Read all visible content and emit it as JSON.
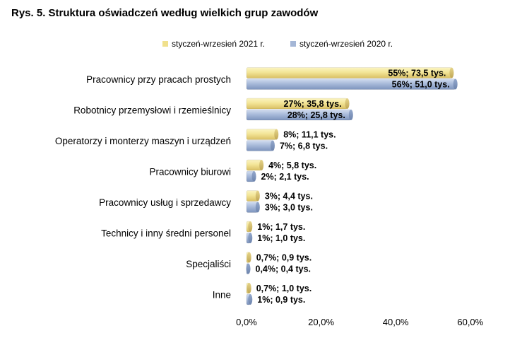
{
  "chart_data": {
    "type": "bar",
    "orientation": "horizontal",
    "title": "Rys. 5. Struktura oświadczeń według wielkich grup zawodów",
    "categories": [
      "Pracownicy przy pracach prostych",
      "Robotnicy przemysłowi i rzemieślnicy",
      "Operatorzy i monterzy maszyn i urządzeń",
      "Pracownicy biurowi",
      "Pracownicy usług i sprzedawcy",
      "Technicy i inny średni personel",
      "Specjaliści",
      "Inne"
    ],
    "series": [
      {
        "name": "styczeń-wrzesień 2021 r.",
        "color": "#f0e08c",
        "values": [
          55,
          27,
          8,
          4,
          3,
          1,
          0.7,
          0.7
        ],
        "labels": [
          "55%; 73,5 tys.",
          "27%; 35,8 tys.",
          "8%; 11,1 tys.",
          "4%; 5,8 tys.",
          "3%; 4,4 tys.",
          "1%; 1,7 tys.",
          "0,7%; 0,9 tys.",
          "0,7%; 1,0 tys."
        ]
      },
      {
        "name": "styczeń-wrzesień 2020 r.",
        "color": "#a4b6d6",
        "values": [
          56,
          28,
          7,
          2,
          3,
          1,
          0.4,
          1
        ],
        "labels": [
          "56%; 51,0 tys.",
          "28%; 25,8 tys.",
          "7%; 6,8 tys.",
          "2%; 2,1 tys.",
          "3%; 3,0 tys.",
          "1%; 1,0 tys.",
          "0,4%; 0,4 tys.",
          "1%; 0,9 tys."
        ]
      }
    ],
    "xlim": [
      0,
      60
    ],
    "xticks": [
      "0,0%",
      "20,0%",
      "40,0%",
      "60,0%"
    ],
    "xtick_values": [
      0,
      20,
      40,
      60
    ],
    "legend_position": "top",
    "grid": false
  }
}
